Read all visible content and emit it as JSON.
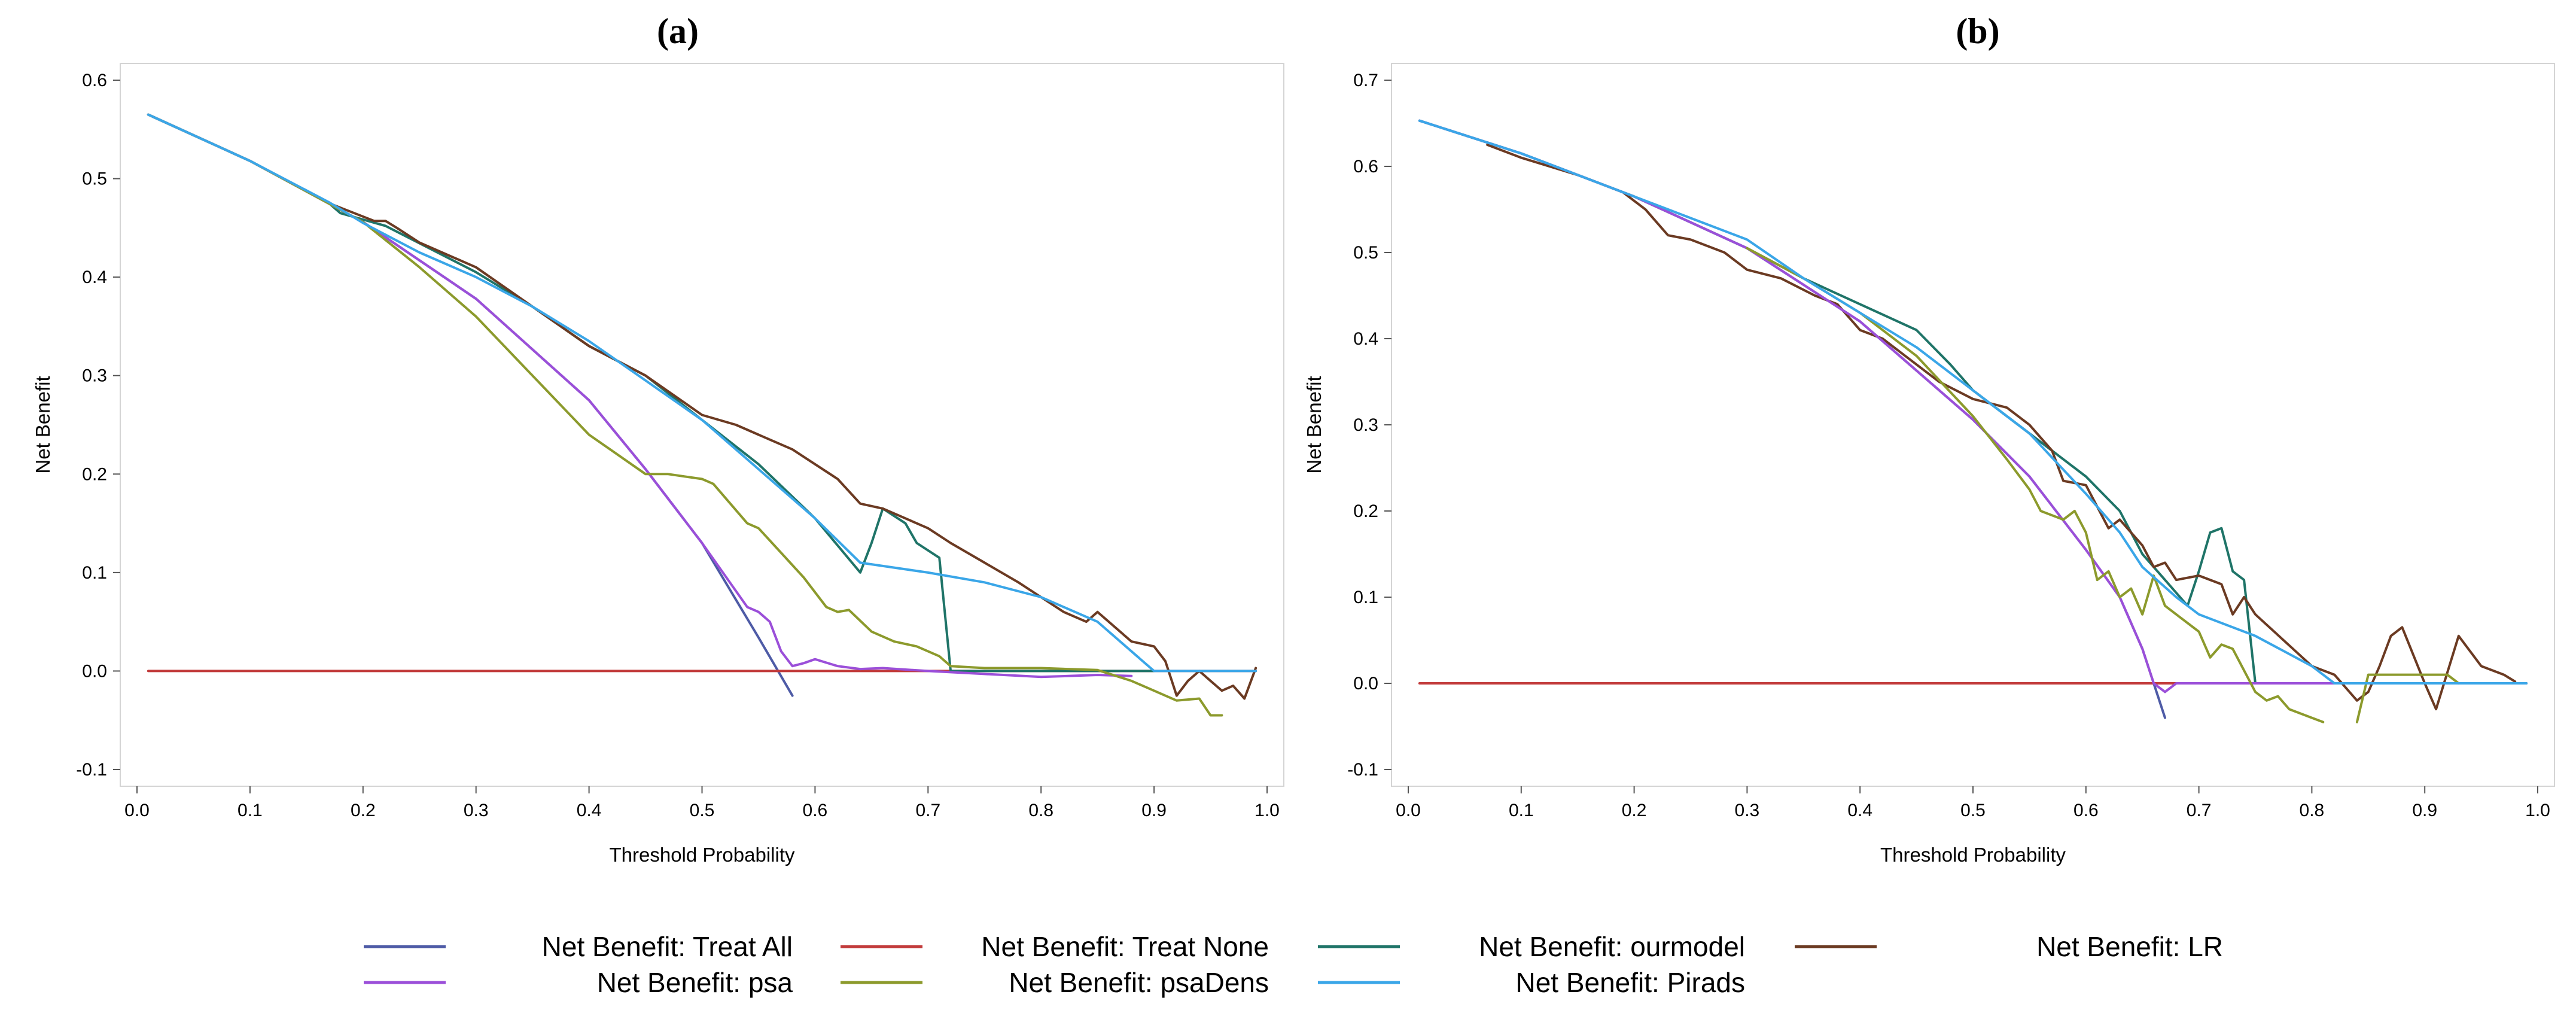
{
  "chart_data": [
    {
      "type": "line",
      "title": "(a)",
      "xlabel": "Threshold Probability",
      "ylabel": "Net Benefit",
      "xlim": [
        0,
        1
      ],
      "ylim": [
        -0.1,
        0.6
      ],
      "xticks": [
        "0.0",
        "0.1",
        "0.2",
        "0.3",
        "0.4",
        "0.5",
        "0.6",
        "0.7",
        "0.8",
        "0.9",
        "1.0"
      ],
      "yticks": [
        "-0.1",
        "0.0",
        "0.1",
        "0.2",
        "0.3",
        "0.4",
        "0.5",
        "0.6"
      ],
      "grid": false,
      "series": [
        {
          "name": "Net Benefit: Treat All",
          "color": "#4e5ba6",
          "x": [
            0.01,
            0.1,
            0.2,
            0.3,
            0.4,
            0.45,
            0.5,
            0.55,
            0.58
          ],
          "y": [
            0.565,
            0.518,
            0.456,
            0.378,
            0.275,
            0.205,
            0.13,
            0.034,
            -0.025
          ]
        },
        {
          "name": "Net Benefit: Treat None",
          "color": "#c23b3b",
          "x": [
            0.01,
            0.99
          ],
          "y": [
            0,
            0
          ]
        },
        {
          "name": "Net Benefit: ourmodel",
          "color": "#1f7468",
          "x": [
            0.01,
            0.1,
            0.17,
            0.18,
            0.22,
            0.3,
            0.35,
            0.4,
            0.45,
            0.5,
            0.55,
            0.6,
            0.64,
            0.65,
            0.66,
            0.68,
            0.69,
            0.71,
            0.72,
            0.8,
            0.9
          ],
          "y": [
            0.565,
            0.518,
            0.475,
            0.465,
            0.452,
            0.405,
            0.37,
            0.33,
            0.3,
            0.255,
            0.21,
            0.155,
            0.1,
            0.13,
            0.165,
            0.15,
            0.13,
            0.115,
            0,
            0,
            0
          ]
        },
        {
          "name": "Net Benefit: LR",
          "color": "#6b3a22",
          "x": [
            0.01,
            0.1,
            0.17,
            0.21,
            0.22,
            0.23,
            0.25,
            0.3,
            0.35,
            0.4,
            0.45,
            0.5,
            0.53,
            0.55,
            0.56,
            0.58,
            0.6,
            0.62,
            0.64,
            0.66,
            0.68,
            0.7,
            0.72,
            0.75,
            0.78,
            0.8,
            0.82,
            0.84,
            0.85,
            0.87,
            0.88,
            0.9,
            0.91,
            0.92,
            0.93,
            0.94,
            0.95,
            0.96,
            0.97,
            0.98,
            0.99
          ],
          "y": [
            0.565,
            0.518,
            0.475,
            0.457,
            0.457,
            0.45,
            0.435,
            0.41,
            0.37,
            0.33,
            0.3,
            0.26,
            0.25,
            0.24,
            0.235,
            0.225,
            0.21,
            0.195,
            0.17,
            0.165,
            0.155,
            0.145,
            0.13,
            0.11,
            0.09,
            0.075,
            0.06,
            0.05,
            0.06,
            0.04,
            0.03,
            0.025,
            0.01,
            -0.025,
            -0.01,
            0,
            -0.01,
            -0.02,
            -0.015,
            -0.028,
            0.003
          ]
        },
        {
          "name": "Net Benefit: psa",
          "color": "#9b4fd9",
          "x": [
            0.01,
            0.1,
            0.2,
            0.3,
            0.4,
            0.45,
            0.5,
            0.54,
            0.55,
            0.56,
            0.57,
            0.58,
            0.59,
            0.6,
            0.62,
            0.64,
            0.66,
            0.7,
            0.75,
            0.8,
            0.85,
            0.88
          ],
          "y": [
            0.565,
            0.518,
            0.456,
            0.378,
            0.275,
            0.205,
            0.13,
            0.065,
            0.06,
            0.05,
            0.02,
            0.005,
            0.008,
            0.012,
            0.005,
            0.002,
            0.003,
            0,
            -0.003,
            -0.006,
            -0.004,
            -0.005
          ]
        },
        {
          "name": "Net Benefit: psaDens",
          "color": "#8c9a2c",
          "x": [
            0.01,
            0.1,
            0.2,
            0.25,
            0.3,
            0.35,
            0.4,
            0.45,
            0.47,
            0.5,
            0.51,
            0.54,
            0.55,
            0.57,
            0.59,
            0.61,
            0.62,
            0.63,
            0.65,
            0.67,
            0.69,
            0.71,
            0.72,
            0.75,
            0.8,
            0.85,
            0.88,
            0.9,
            0.92,
            0.94,
            0.95,
            0.96
          ],
          "y": [
            0.565,
            0.518,
            0.456,
            0.41,
            0.36,
            0.3,
            0.24,
            0.2,
            0.2,
            0.195,
            0.19,
            0.15,
            0.145,
            0.12,
            0.095,
            0.065,
            0.06,
            0.062,
            0.04,
            0.03,
            0.025,
            0.015,
            0.005,
            0.003,
            0.003,
            0.001,
            -0.01,
            -0.02,
            -0.03,
            -0.028,
            -0.045,
            -0.045
          ]
        },
        {
          "name": "Net Benefit: Pirads",
          "color": "#3aa6e8",
          "x": [
            0.01,
            0.1,
            0.17,
            0.2,
            0.25,
            0.3,
            0.35,
            0.4,
            0.45,
            0.5,
            0.55,
            0.6,
            0.64,
            0.7,
            0.75,
            0.8,
            0.85,
            0.89,
            0.9,
            0.99
          ],
          "y": [
            0.565,
            0.518,
            0.476,
            0.455,
            0.425,
            0.4,
            0.37,
            0.335,
            0.295,
            0.255,
            0.205,
            0.155,
            0.11,
            0.1,
            0.09,
            0.075,
            0.05,
            0.01,
            0,
            0
          ]
        }
      ]
    },
    {
      "type": "line",
      "title": "(b)",
      "xlabel": "Threshold Probability",
      "ylabel": "Net Benefit",
      "xlim": [
        0,
        1
      ],
      "ylim": [
        -0.1,
        0.7
      ],
      "xticks": [
        "0.0",
        "0.1",
        "0.2",
        "0.3",
        "0.4",
        "0.5",
        "0.6",
        "0.7",
        "0.8",
        "0.9",
        "1.0"
      ],
      "yticks": [
        "-0.1",
        "0.0",
        "0.1",
        "0.2",
        "0.3",
        "0.4",
        "0.5",
        "0.6",
        "0.7"
      ],
      "grid": false,
      "series": [
        {
          "name": "Net Benefit: Treat All",
          "color": "#4e5ba6",
          "x": [
            0.01,
            0.1,
            0.2,
            0.3,
            0.4,
            0.5,
            0.55,
            0.6,
            0.63,
            0.65,
            0.67
          ],
          "y": [
            0.653,
            0.615,
            0.565,
            0.505,
            0.42,
            0.306,
            0.24,
            0.155,
            0.1,
            0.04,
            -0.04
          ]
        },
        {
          "name": "Net Benefit: Treat None",
          "color": "#c23b3b",
          "x": [
            0.01,
            0.99
          ],
          "y": [
            0,
            0
          ]
        },
        {
          "name": "Net Benefit: ourmodel",
          "color": "#1f7468",
          "x": [
            0.01,
            0.1,
            0.2,
            0.3,
            0.35,
            0.4,
            0.45,
            0.48,
            0.5,
            0.55,
            0.6,
            0.63,
            0.65,
            0.67,
            0.69,
            0.7,
            0.71,
            0.72,
            0.73,
            0.74,
            0.75,
            0.8,
            0.9
          ],
          "y": [
            0.653,
            0.615,
            0.565,
            0.505,
            0.47,
            0.44,
            0.41,
            0.37,
            0.34,
            0.29,
            0.24,
            0.2,
            0.15,
            0.12,
            0.09,
            0.13,
            0.175,
            0.18,
            0.13,
            0.12,
            0,
            0,
            0
          ]
        },
        {
          "name": "Net Benefit: LR",
          "color": "#6b3a22",
          "x": [
            0.07,
            0.1,
            0.15,
            0.19,
            0.21,
            0.23,
            0.25,
            0.28,
            0.3,
            0.33,
            0.36,
            0.38,
            0.4,
            0.42,
            0.45,
            0.47,
            0.5,
            0.53,
            0.55,
            0.57,
            0.58,
            0.6,
            0.62,
            0.63,
            0.65,
            0.66,
            0.67,
            0.68,
            0.7,
            0.72,
            0.73,
            0.74,
            0.75,
            0.8,
            0.82,
            0.84,
            0.85,
            0.86,
            0.87,
            0.88,
            0.9,
            0.91,
            0.93,
            0.95,
            0.97,
            0.98
          ],
          "y": [
            0.625,
            0.61,
            0.59,
            0.57,
            0.55,
            0.52,
            0.515,
            0.5,
            0.48,
            0.47,
            0.45,
            0.44,
            0.41,
            0.4,
            0.37,
            0.35,
            0.33,
            0.32,
            0.3,
            0.27,
            0.235,
            0.23,
            0.18,
            0.19,
            0.16,
            0.135,
            0.14,
            0.12,
            0.125,
            0.115,
            0.08,
            0.1,
            0.08,
            0.02,
            0.01,
            -0.02,
            -0.01,
            0.02,
            0.055,
            0.065,
            0,
            -0.03,
            0.055,
            0.02,
            0.01,
            0.002
          ]
        },
        {
          "name": "Net Benefit: psa",
          "color": "#9b4fd9",
          "x": [
            0.01,
            0.1,
            0.2,
            0.3,
            0.4,
            0.5,
            0.55,
            0.6,
            0.63,
            0.65,
            0.66,
            0.67,
            0.68,
            0.7,
            0.8,
            0.9
          ],
          "y": [
            0.653,
            0.615,
            0.565,
            0.505,
            0.42,
            0.306,
            0.24,
            0.155,
            0.1,
            0.04,
            0,
            -0.01,
            0,
            0,
            0,
            0
          ]
        },
        {
          "name": "Net Benefit: psaDens",
          "color": "#8c9a2c",
          "x": [
            0.3,
            0.35,
            0.4,
            0.45,
            0.5,
            0.53,
            0.55,
            0.56,
            0.58,
            0.59,
            0.6,
            0.61,
            0.62,
            0.63,
            0.64,
            0.65,
            0.66,
            0.67,
            0.68,
            0.7,
            0.71,
            0.72,
            0.73,
            0.74,
            0.75,
            0.76,
            0.77,
            0.78,
            0.8,
            0.81
          ],
          "y": [
            0.505,
            0.47,
            0.43,
            0.38,
            0.31,
            0.26,
            0.225,
            0.2,
            0.19,
            0.2,
            0.175,
            0.12,
            0.13,
            0.1,
            0.11,
            0.08,
            0.125,
            0.09,
            0.08,
            0.06,
            0.03,
            0.045,
            0.04,
            0.015,
            -0.01,
            -0.02,
            -0.015,
            -0.03,
            -0.04,
            -0.045
          ]
        },
        {
          "name": "",
          "color": "#8c9a2c",
          "x": [
            0.84,
            0.85,
            0.86,
            0.87,
            0.9,
            0.92,
            0.93
          ],
          "y": [
            -0.045,
            0.01,
            0.01,
            0.01,
            0.01,
            0.01,
            0
          ]
        },
        {
          "name": "Net Benefit: Pirads",
          "color": "#3aa6e8",
          "x": [
            0.01,
            0.1,
            0.2,
            0.3,
            0.35,
            0.4,
            0.45,
            0.5,
            0.55,
            0.6,
            0.63,
            0.65,
            0.68,
            0.7,
            0.75,
            0.8,
            0.82,
            0.85,
            0.9,
            0.99
          ],
          "y": [
            0.653,
            0.615,
            0.565,
            0.515,
            0.47,
            0.43,
            0.39,
            0.34,
            0.29,
            0.22,
            0.175,
            0.135,
            0.1,
            0.08,
            0.055,
            0.02,
            0,
            0,
            0,
            0
          ]
        }
      ]
    }
  ],
  "legend": {
    "entries": [
      {
        "label": "Net Benefit: Treat All",
        "color": "#4e5ba6"
      },
      {
        "label": "Net Benefit: Treat None",
        "color": "#c23b3b"
      },
      {
        "label": "Net Benefit: ourmodel",
        "color": "#1f7468"
      },
      {
        "label": "Net Benefit: LR",
        "color": "#6b3a22"
      },
      {
        "label": "Net Benefit: psa",
        "color": "#9b4fd9"
      },
      {
        "label": "Net Benefit: psaDens",
        "color": "#8c9a2c"
      },
      {
        "label": "Net Benefit: Pirads",
        "color": "#3aa6e8"
      }
    ]
  }
}
